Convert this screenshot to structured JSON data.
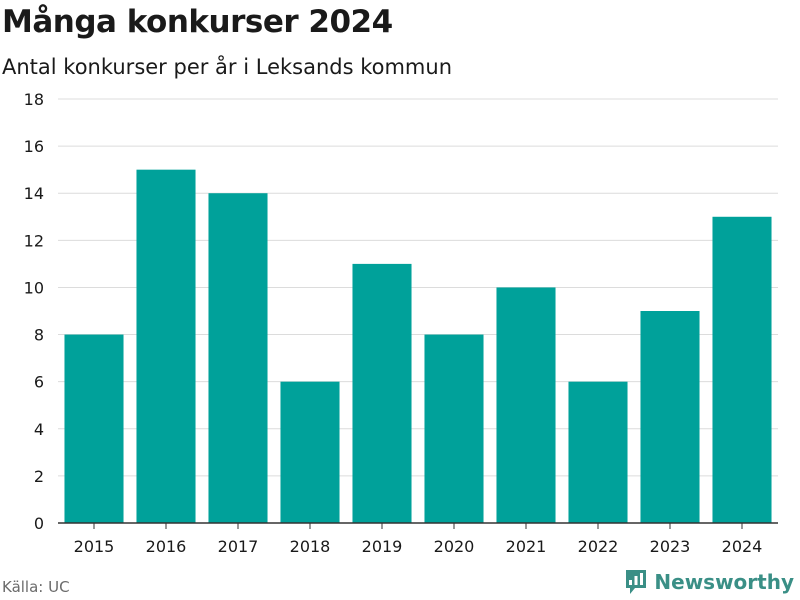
{
  "title": "Många konkurser 2024",
  "subtitle": "Antal konkurser per år i Leksands kommun",
  "source": "Källa: UC",
  "brand": {
    "name": "Newsworthy",
    "icon": "newsworthy-logo-icon",
    "color": "#3a8f86"
  },
  "chart_data": {
    "type": "bar",
    "categories": [
      "2015",
      "2016",
      "2017",
      "2018",
      "2019",
      "2020",
      "2021",
      "2022",
      "2023",
      "2024"
    ],
    "values": [
      8,
      15,
      14,
      6,
      11,
      8,
      10,
      6,
      9,
      13
    ],
    "ylim": [
      0,
      18
    ],
    "yticks": [
      0,
      2,
      4,
      6,
      8,
      10,
      12,
      14,
      16,
      18
    ],
    "grid": true,
    "bar_color": "#00a19a",
    "grid_color": "#dcdcdc",
    "axis_color": "#333333"
  }
}
